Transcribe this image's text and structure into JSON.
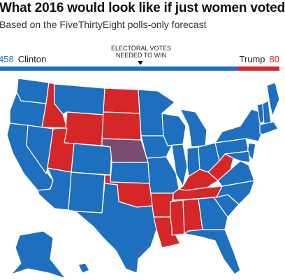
{
  "header": {
    "title": "What 2016 would look like if just women voted",
    "subtitle": "Based on the FiveThirtyEight polls-only forecast"
  },
  "electoral_votes": {
    "clinton": {
      "label": "Clinton",
      "votes": "458",
      "color": "#1e6fbd"
    },
    "trump": {
      "label": "Trump",
      "votes": "80",
      "color": "#d62728"
    },
    "needed_label": "ELECTORAL VOTES NEEDED TO WIN",
    "clinton_share": 0.851
  },
  "map": {
    "colors": {
      "clinton": "#1e6fbd",
      "trump": "#d62728",
      "border": "#ffffff",
      "split_hatch": "red/blue diagonal hatch"
    },
    "trump_states": [
      "ID",
      "UT",
      "WY",
      "ND",
      "SD",
      "OK",
      "AR",
      "LA",
      "MS",
      "AL",
      "TN",
      "KY",
      "WV"
    ],
    "split_states": [
      "NE"
    ]
  }
}
